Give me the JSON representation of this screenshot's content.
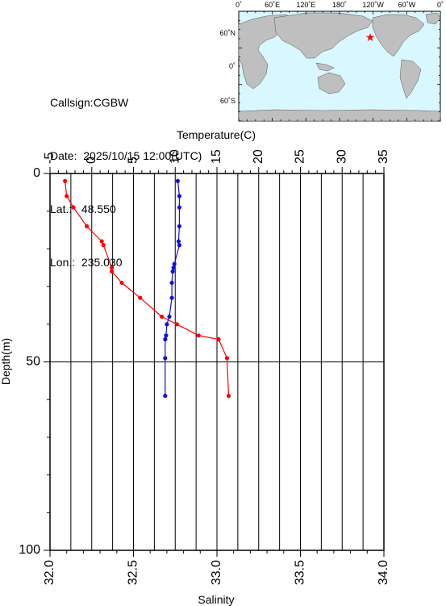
{
  "station": {
    "callsign_text": "Callsign:CGBW",
    "date_label": "Date:",
    "date_value": "2025/10/15 12:00(UTC)",
    "lat_label": "Lat.:",
    "lat_value": "48.550",
    "lon_label": "Lon.:",
    "lon_value": "235.030"
  },
  "map": {
    "lon_tick_labels": [
      "0˚",
      "60˚E",
      "120˚E",
      "180˚",
      "120˚W",
      "60˚W",
      "0˚"
    ],
    "lat_tick_labels": [
      "60˚N",
      "0˚",
      "60˚S"
    ],
    "station_marker_color": "#ff0000",
    "ocean_color": "#d9f7ff",
    "land_color": "#bfbfbf"
  },
  "chart_data": {
    "type": "line",
    "top_axis": {
      "label": "Temperature(C)",
      "range": [
        -5,
        35
      ],
      "ticks": [
        -5,
        0,
        5,
        10,
        15,
        20,
        25,
        30,
        35
      ]
    },
    "bottom_axis": {
      "label": "Salinity",
      "range": [
        32.0,
        34.0
      ],
      "ticks": [
        "32.0",
        "32.5",
        "33.0",
        "33.5",
        "34.0"
      ]
    },
    "y_axis": {
      "label": "Depth(m)",
      "range": [
        0,
        100
      ],
      "inverted": true,
      "ticks": [
        0,
        50,
        100
      ]
    },
    "grid": true,
    "series": [
      {
        "axis": "salinity",
        "color": "#ff0000",
        "points": [
          {
            "x": 32.09,
            "y": 2
          },
          {
            "x": 32.1,
            "y": 6
          },
          {
            "x": 32.14,
            "y": 9
          },
          {
            "x": 32.22,
            "y": 14
          },
          {
            "x": 32.31,
            "y": 18
          },
          {
            "x": 32.32,
            "y": 19
          },
          {
            "x": 32.37,
            "y": 25
          },
          {
            "x": 32.37,
            "y": 26
          },
          {
            "x": 32.43,
            "y": 29
          },
          {
            "x": 32.54,
            "y": 33
          },
          {
            "x": 32.67,
            "y": 38
          },
          {
            "x": 32.76,
            "y": 40
          },
          {
            "x": 32.89,
            "y": 43
          },
          {
            "x": 33.01,
            "y": 44
          },
          {
            "x": 33.06,
            "y": 49
          },
          {
            "x": 33.07,
            "y": 59
          }
        ]
      },
      {
        "axis": "temperature",
        "color": "#1010e0",
        "points": [
          {
            "x": 10.3,
            "y": 2
          },
          {
            "x": 10.5,
            "y": 6
          },
          {
            "x": 10.5,
            "y": 9
          },
          {
            "x": 10.5,
            "y": 14
          },
          {
            "x": 10.4,
            "y": 18
          },
          {
            "x": 10.5,
            "y": 19
          },
          {
            "x": 9.9,
            "y": 24
          },
          {
            "x": 9.8,
            "y": 25
          },
          {
            "x": 9.7,
            "y": 26
          },
          {
            "x": 9.6,
            "y": 29
          },
          {
            "x": 9.6,
            "y": 33
          },
          {
            "x": 9.3,
            "y": 38
          },
          {
            "x": 9.0,
            "y": 40
          },
          {
            "x": 8.9,
            "y": 43
          },
          {
            "x": 8.8,
            "y": 44
          },
          {
            "x": 8.8,
            "y": 49
          },
          {
            "x": 8.8,
            "y": 59
          }
        ]
      }
    ]
  }
}
